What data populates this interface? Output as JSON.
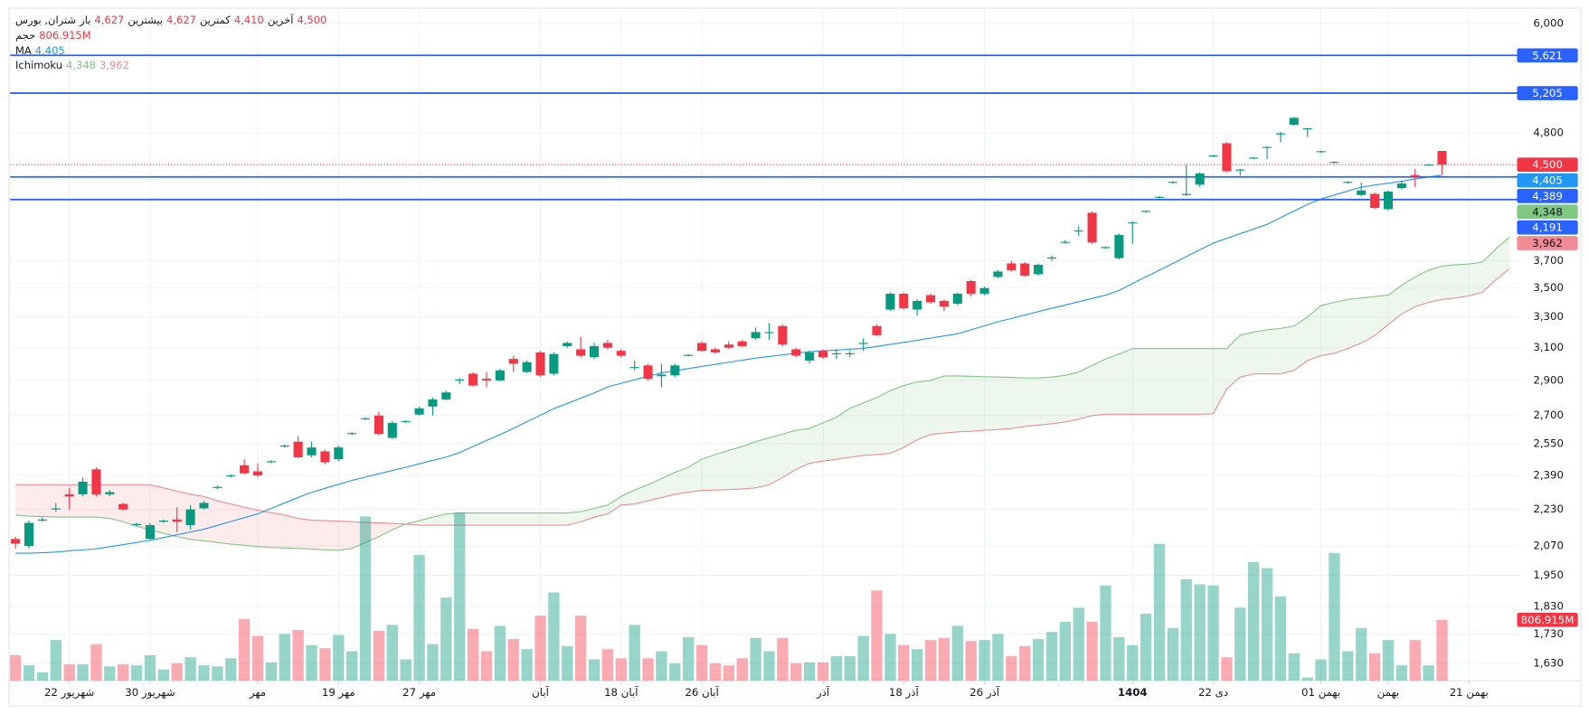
{
  "chart_data": {
    "type": "candlestick",
    "header": {
      "symbol": "شتران, بورس",
      "fields": [
        {
          "label": "باز",
          "value": "4,627"
        },
        {
          "label": "بیشترین",
          "value": "4,627"
        },
        {
          "label": "کمترین",
          "value": "4,410"
        },
        {
          "label": "آخرین",
          "value": "4,500"
        }
      ]
    },
    "log": true,
    "grid": true,
    "ylim": [
      1574,
      6189
    ],
    "yticks": [
      {
        "value": 1630,
        "label": "1,630"
      },
      {
        "value": 1730,
        "label": "1,730"
      },
      {
        "value": 1830,
        "label": "1,830"
      },
      {
        "value": 1950,
        "label": "1,950"
      },
      {
        "value": 2070,
        "label": "2,070"
      },
      {
        "value": 2230,
        "label": "2,230"
      },
      {
        "value": 2390,
        "label": "2,390"
      },
      {
        "value": 2550,
        "label": "2,550"
      },
      {
        "value": 2700,
        "label": "2,700"
      },
      {
        "value": 2900,
        "label": "2,900"
      },
      {
        "value": 3100,
        "label": "3,100"
      },
      {
        "value": 3300,
        "label": "3,300"
      },
      {
        "value": 3500,
        "label": "3,500"
      },
      {
        "value": 3700,
        "label": "3,700"
      },
      {
        "value": 4800,
        "label": "4,800"
      },
      {
        "value": 6000,
        "label": "6,000"
      }
    ],
    "xlim": [
      -0.4,
      111.8
    ],
    "xticks": [
      {
        "value": 4,
        "label": "22 شهریور"
      },
      {
        "value": 10,
        "label": "30 شهریور"
      },
      {
        "value": 18,
        "label": "مهر"
      },
      {
        "value": 24,
        "label": "19 مهر"
      },
      {
        "value": 30,
        "label": "27 مهر"
      },
      {
        "value": 39,
        "label": "آبان"
      },
      {
        "value": 45,
        "label": "18 آبان"
      },
      {
        "value": 51,
        "label": "26 آبان"
      },
      {
        "value": 60,
        "label": "آذر"
      },
      {
        "value": 66,
        "label": "18 آذر"
      },
      {
        "value": 72,
        "label": "26 آذر"
      },
      {
        "value": 83,
        "label": "1404",
        "bold": true
      },
      {
        "value": 89,
        "label": "22 دی"
      },
      {
        "value": 97,
        "label": "بهمن 01"
      },
      {
        "value": 102,
        "label": "بهمن"
      },
      {
        "value": 108,
        "label": "بهمن 21"
      }
    ],
    "up_color": "#089981",
    "down_color": "#f23645",
    "candles": {
      "open": [
        2100,
        2070,
        2180,
        2230,
        2300,
        2300,
        2420,
        2300,
        2255,
        2160,
        2100,
        2175,
        2185,
        2160,
        2235,
        2330,
        2385,
        2440,
        2410,
        2455,
        2535,
        2560,
        2490,
        2510,
        2470,
        2600,
        2680,
        2700,
        2580,
        2665,
        2705,
        2750,
        2790,
        2900,
        2940,
        2910,
        2900,
        3030,
        2950,
        3070,
        2940,
        3110,
        3090,
        3040,
        3130,
        3080,
        2975,
        2990,
        2925,
        2930,
        3050,
        3130,
        3090,
        3120,
        3140,
        3160,
        3195,
        3240,
        3090,
        3020,
        3080,
        3060,
        3060,
        3125,
        3240,
        3350,
        3460,
        3350,
        3450,
        3410,
        3390,
        3550,
        3460,
        3580,
        3680,
        3680,
        3600,
        3720,
        3840,
        3930,
        4080,
        3800,
        3720,
        3995,
        4090,
        4210,
        4340,
        4230,
        4320,
        4580,
        4700,
        4450,
        4560,
        4660,
        4790,
        4880,
        4840,
        4620,
        4520,
        4340,
        4230,
        4240,
        4110,
        4290,
        4405,
        4495,
        4627
      ],
      "high": [
        2110,
        2180,
        2195,
        2260,
        2330,
        2380,
        2430,
        2320,
        2260,
        2170,
        2170,
        2185,
        2240,
        2250,
        2270,
        2340,
        2395,
        2470,
        2450,
        2465,
        2545,
        2590,
        2560,
        2520,
        2540,
        2610,
        2690,
        2720,
        2670,
        2675,
        2750,
        2800,
        2840,
        2915,
        2950,
        2950,
        2970,
        3050,
        3020,
        3080,
        3070,
        3140,
        3170,
        3130,
        3150,
        3090,
        3020,
        3000,
        3000,
        3000,
        3060,
        3140,
        3100,
        3140,
        3150,
        3230,
        3260,
        3250,
        3100,
        3080,
        3090,
        3090,
        3080,
        3160,
        3250,
        3470,
        3470,
        3420,
        3460,
        3420,
        3470,
        3560,
        3510,
        3630,
        3700,
        3690,
        3680,
        3740,
        3860,
        3970,
        4090,
        3810,
        3910,
        4010,
        4100,
        4220,
        4350,
        4500,
        4430,
        4590,
        4710,
        4460,
        4570,
        4670,
        4810,
        4960,
        4850,
        4630,
        4530,
        4350,
        4340,
        4250,
        4270,
        4350,
        4460,
        4505,
        4627
      ],
      "low": [
        2060,
        2060,
        2175,
        2220,
        2230,
        2290,
        2290,
        2290,
        2225,
        2155,
        2095,
        2170,
        2130,
        2140,
        2230,
        2325,
        2380,
        2395,
        2380,
        2450,
        2530,
        2475,
        2480,
        2445,
        2460,
        2595,
        2675,
        2595,
        2575,
        2660,
        2700,
        2700,
        2785,
        2880,
        2865,
        2860,
        2895,
        2950,
        2945,
        2920,
        2930,
        3100,
        3040,
        3030,
        3090,
        3040,
        2960,
        2900,
        2860,
        2920,
        3045,
        3075,
        3060,
        3090,
        3105,
        3150,
        3150,
        3110,
        3040,
        3000,
        3030,
        3030,
        3040,
        3080,
        3175,
        3340,
        3350,
        3310,
        3390,
        3340,
        3380,
        3440,
        3450,
        3570,
        3620,
        3580,
        3590,
        3700,
        3830,
        3890,
        3830,
        3790,
        3710,
        3830,
        4080,
        4200,
        4330,
        4220,
        4300,
        4570,
        4430,
        4400,
        4550,
        4550,
        4710,
        4870,
        4760,
        4610,
        4510,
        4330,
        4220,
        4110,
        4100,
        4280,
        4300,
        4490,
        4410
      ],
      "close": [
        2080,
        2170,
        2185,
        2235,
        2290,
        2360,
        2300,
        2310,
        2230,
        2165,
        2160,
        2180,
        2175,
        2230,
        2260,
        2335,
        2390,
        2400,
        2390,
        2460,
        2540,
        2480,
        2530,
        2455,
        2530,
        2605,
        2685,
        2600,
        2660,
        2670,
        2740,
        2790,
        2830,
        2905,
        2870,
        2900,
        2960,
        3000,
        3010,
        2930,
        3060,
        3130,
        3050,
        3110,
        3100,
        3050,
        2980,
        2910,
        2935,
        2990,
        3055,
        3080,
        3070,
        3100,
        3110,
        3200,
        3200,
        3120,
        3050,
        3070,
        3040,
        3065,
        3065,
        3130,
        3180,
        3460,
        3360,
        3410,
        3400,
        3370,
        3460,
        3460,
        3500,
        3620,
        3630,
        3590,
        3670,
        3725,
        3845,
        3935,
        3840,
        3805,
        3900,
        4000,
        4095,
        4215,
        4345,
        4240,
        4420,
        4585,
        4440,
        4455,
        4565,
        4665,
        4795,
        4950,
        4845,
        4625,
        4525,
        4345,
        4270,
        4120,
        4260,
        4330,
        4395,
        4500,
        4500
      ]
    },
    "volume": {
      "name": "حجم",
      "lim": [
        0,
        2300
      ],
      "values": [
        336,
        202,
        108,
        538,
        215,
        215,
        484,
        188,
        215,
        202,
        336,
        148,
        229,
        309,
        202,
        188,
        296,
        820,
        592,
        242,
        619,
        673,
        471,
        430,
        605,
        390,
        2179,
        659,
        740,
        282,
        1668,
        484,
        1103,
        2233,
        686,
        390,
        726,
        551,
        417,
        861,
        1170,
        457,
        861,
        282,
        417,
        296,
        740,
        296,
        390,
        229,
        578,
        471,
        229,
        202,
        296,
        565,
        390,
        565,
        229,
        242,
        242,
        323,
        323,
        592,
        1197,
        619,
        471,
        417,
        538,
        565,
        726,
        525,
        538,
        619,
        323,
        457,
        551,
        646,
        780,
        968,
        780,
        1264,
        578,
        471,
        888,
        1816,
        699,
        1345,
        1278,
        1264,
        309,
        968,
        1574,
        1493,
        1116,
        363,
        40,
        282,
        1695,
        390,
        699,
        363,
        538,
        202,
        538,
        202,
        806.915
      ],
      "last": {
        "value": 806.915,
        "label": "806.915M"
      }
    },
    "ma": {
      "name": "MA",
      "color": "#2196f3",
      "values": [
        2040,
        2040,
        2042,
        2045,
        2050,
        2054,
        2058,
        2067,
        2076,
        2085,
        2094,
        2106,
        2118,
        2130,
        2142,
        2159,
        2176,
        2193,
        2210,
        2235,
        2260,
        2285,
        2309,
        2328,
        2347,
        2366,
        2382,
        2398,
        2414,
        2430,
        2447,
        2464,
        2481,
        2504,
        2535,
        2566,
        2597,
        2630,
        2666,
        2702,
        2738,
        2767,
        2797,
        2827,
        2862,
        2883,
        2904,
        2925,
        2945,
        2958,
        2971,
        2984,
        2996,
        3009,
        3022,
        3035,
        3045,
        3055,
        3065,
        3075,
        3080,
        3085,
        3090,
        3096,
        3108,
        3121,
        3134,
        3147,
        3161,
        3175,
        3189,
        3215,
        3241,
        3268,
        3290,
        3313,
        3336,
        3359,
        3381,
        3404,
        3427,
        3450,
        3483,
        3532,
        3581,
        3630,
        3680,
        3732,
        3784,
        3836,
        3873,
        3910,
        3947,
        3985,
        4039,
        4094,
        4149,
        4196,
        4230,
        4264,
        4298,
        4317,
        4332,
        4350,
        4370,
        4388,
        4405
      ],
      "last": {
        "value": 4405,
        "label": "4,405"
      }
    },
    "ichimoku": {
      "name": "Ichimoku",
      "span_a": {
        "color": "#81c784",
        "fill": "rgba(76,175,80,0.10)",
        "values": [
          2205,
          2200,
          2198,
          2196,
          2196,
          2196,
          2196,
          2190,
          2175,
          2155,
          2140,
          2125,
          2110,
          2098,
          2092,
          2085,
          2078,
          2073,
          2068,
          2064,
          2062,
          2060,
          2057,
          2054,
          2052,
          2060,
          2085,
          2110,
          2140,
          2165,
          2180,
          2195,
          2210,
          2214,
          2214,
          2214,
          2214,
          2214,
          2214,
          2214,
          2214,
          2214,
          2220,
          2235,
          2250,
          2290,
          2320,
          2345,
          2375,
          2405,
          2430,
          2470,
          2494,
          2515,
          2535,
          2560,
          2580,
          2600,
          2620,
          2630,
          2660,
          2690,
          2740,
          2770,
          2800,
          2840,
          2870,
          2891,
          2900,
          2927,
          2927,
          2925,
          2922,
          2920,
          2918,
          2915,
          2915,
          2920,
          2930,
          2951,
          2990,
          3030,
          3060,
          3094,
          3094,
          3094,
          3094,
          3094,
          3094,
          3094,
          3094,
          3180,
          3200,
          3215,
          3224,
          3240,
          3300,
          3377,
          3400,
          3420,
          3430,
          3440,
          3450,
          3520,
          3580,
          3630,
          3660,
          3670,
          3675,
          3690,
          3790,
          3880
        ],
        "last": {
          "value": 4348,
          "label": "4,348"
        }
      },
      "span_b": {
        "color": "#f28b93",
        "fill": "rgba(242,54,69,0.10)",
        "values": [
          2345,
          2345,
          2345,
          2345,
          2345,
          2345,
          2345,
          2345,
          2345,
          2345,
          2345,
          2330,
          2315,
          2300,
          2290,
          2270,
          2255,
          2240,
          2228,
          2215,
          2205,
          2190,
          2182,
          2180,
          2178,
          2175,
          2172,
          2170,
          2168,
          2165,
          2160,
          2160,
          2160,
          2160,
          2160,
          2160,
          2160,
          2160,
          2160,
          2160,
          2160,
          2160,
          2175,
          2195,
          2210,
          2250,
          2255,
          2270,
          2285,
          2300,
          2310,
          2318,
          2320,
          2322,
          2325,
          2330,
          2345,
          2380,
          2420,
          2450,
          2460,
          2470,
          2480,
          2490,
          2494,
          2500,
          2530,
          2570,
          2598,
          2605,
          2612,
          2615,
          2620,
          2624,
          2630,
          2640,
          2648,
          2655,
          2665,
          2680,
          2700,
          2707,
          2707,
          2707,
          2707,
          2707,
          2707,
          2707,
          2707,
          2710,
          2850,
          2920,
          2939,
          2939,
          2939,
          2960,
          3020,
          3050,
          3065,
          3094,
          3130,
          3178,
          3250,
          3320,
          3370,
          3400,
          3420,
          3430,
          3445,
          3470,
          3560,
          3640
        ],
        "last": {
          "value": 3962,
          "label": "3,962"
        }
      }
    },
    "hline_color": "#2962ff",
    "hlines": [
      {
        "value": 5621,
        "label": "5,621"
      },
      {
        "value": 5205,
        "label": "5,205"
      },
      {
        "value": 4389,
        "label": "4,389"
      },
      {
        "value": 4191,
        "label": "4,191"
      }
    ],
    "last_price": {
      "value": 4500,
      "label": "4,500"
    }
  }
}
